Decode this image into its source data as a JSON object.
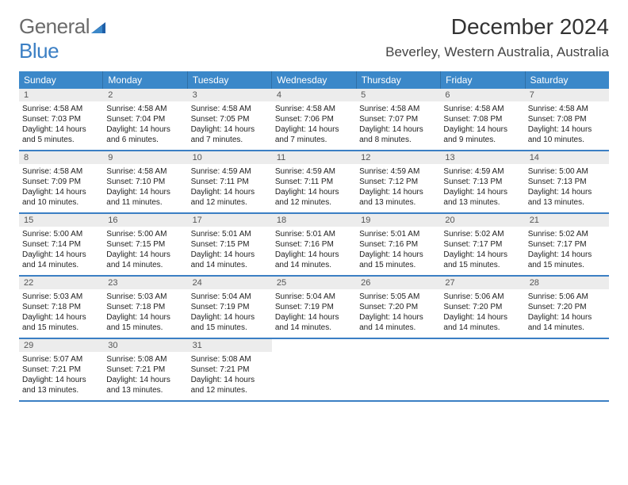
{
  "logo": {
    "text1": "General",
    "text2": "Blue"
  },
  "title": "December 2024",
  "location": "Beverley, Western Australia, Australia",
  "colors": {
    "header_bg": "#3b88c9",
    "header_text": "#ffffff",
    "row_divider": "#3b7fc4",
    "daynum_bg": "#ececec",
    "logo_gray": "#6b6b6b",
    "logo_blue": "#3b7fc4"
  },
  "weekdays": [
    "Sunday",
    "Monday",
    "Tuesday",
    "Wednesday",
    "Thursday",
    "Friday",
    "Saturday"
  ],
  "weeks": [
    [
      {
        "n": "1",
        "sr": "Sunrise: 4:58 AM",
        "ss": "Sunset: 7:03 PM",
        "d1": "Daylight: 14 hours",
        "d2": "and 5 minutes."
      },
      {
        "n": "2",
        "sr": "Sunrise: 4:58 AM",
        "ss": "Sunset: 7:04 PM",
        "d1": "Daylight: 14 hours",
        "d2": "and 6 minutes."
      },
      {
        "n": "3",
        "sr": "Sunrise: 4:58 AM",
        "ss": "Sunset: 7:05 PM",
        "d1": "Daylight: 14 hours",
        "d2": "and 7 minutes."
      },
      {
        "n": "4",
        "sr": "Sunrise: 4:58 AM",
        "ss": "Sunset: 7:06 PM",
        "d1": "Daylight: 14 hours",
        "d2": "and 7 minutes."
      },
      {
        "n": "5",
        "sr": "Sunrise: 4:58 AM",
        "ss": "Sunset: 7:07 PM",
        "d1": "Daylight: 14 hours",
        "d2": "and 8 minutes."
      },
      {
        "n": "6",
        "sr": "Sunrise: 4:58 AM",
        "ss": "Sunset: 7:08 PM",
        "d1": "Daylight: 14 hours",
        "d2": "and 9 minutes."
      },
      {
        "n": "7",
        "sr": "Sunrise: 4:58 AM",
        "ss": "Sunset: 7:08 PM",
        "d1": "Daylight: 14 hours",
        "d2": "and 10 minutes."
      }
    ],
    [
      {
        "n": "8",
        "sr": "Sunrise: 4:58 AM",
        "ss": "Sunset: 7:09 PM",
        "d1": "Daylight: 14 hours",
        "d2": "and 10 minutes."
      },
      {
        "n": "9",
        "sr": "Sunrise: 4:58 AM",
        "ss": "Sunset: 7:10 PM",
        "d1": "Daylight: 14 hours",
        "d2": "and 11 minutes."
      },
      {
        "n": "10",
        "sr": "Sunrise: 4:59 AM",
        "ss": "Sunset: 7:11 PM",
        "d1": "Daylight: 14 hours",
        "d2": "and 12 minutes."
      },
      {
        "n": "11",
        "sr": "Sunrise: 4:59 AM",
        "ss": "Sunset: 7:11 PM",
        "d1": "Daylight: 14 hours",
        "d2": "and 12 minutes."
      },
      {
        "n": "12",
        "sr": "Sunrise: 4:59 AM",
        "ss": "Sunset: 7:12 PM",
        "d1": "Daylight: 14 hours",
        "d2": "and 13 minutes."
      },
      {
        "n": "13",
        "sr": "Sunrise: 4:59 AM",
        "ss": "Sunset: 7:13 PM",
        "d1": "Daylight: 14 hours",
        "d2": "and 13 minutes."
      },
      {
        "n": "14",
        "sr": "Sunrise: 5:00 AM",
        "ss": "Sunset: 7:13 PM",
        "d1": "Daylight: 14 hours",
        "d2": "and 13 minutes."
      }
    ],
    [
      {
        "n": "15",
        "sr": "Sunrise: 5:00 AM",
        "ss": "Sunset: 7:14 PM",
        "d1": "Daylight: 14 hours",
        "d2": "and 14 minutes."
      },
      {
        "n": "16",
        "sr": "Sunrise: 5:00 AM",
        "ss": "Sunset: 7:15 PM",
        "d1": "Daylight: 14 hours",
        "d2": "and 14 minutes."
      },
      {
        "n": "17",
        "sr": "Sunrise: 5:01 AM",
        "ss": "Sunset: 7:15 PM",
        "d1": "Daylight: 14 hours",
        "d2": "and 14 minutes."
      },
      {
        "n": "18",
        "sr": "Sunrise: 5:01 AM",
        "ss": "Sunset: 7:16 PM",
        "d1": "Daylight: 14 hours",
        "d2": "and 14 minutes."
      },
      {
        "n": "19",
        "sr": "Sunrise: 5:01 AM",
        "ss": "Sunset: 7:16 PM",
        "d1": "Daylight: 14 hours",
        "d2": "and 15 minutes."
      },
      {
        "n": "20",
        "sr": "Sunrise: 5:02 AM",
        "ss": "Sunset: 7:17 PM",
        "d1": "Daylight: 14 hours",
        "d2": "and 15 minutes."
      },
      {
        "n": "21",
        "sr": "Sunrise: 5:02 AM",
        "ss": "Sunset: 7:17 PM",
        "d1": "Daylight: 14 hours",
        "d2": "and 15 minutes."
      }
    ],
    [
      {
        "n": "22",
        "sr": "Sunrise: 5:03 AM",
        "ss": "Sunset: 7:18 PM",
        "d1": "Daylight: 14 hours",
        "d2": "and 15 minutes."
      },
      {
        "n": "23",
        "sr": "Sunrise: 5:03 AM",
        "ss": "Sunset: 7:18 PM",
        "d1": "Daylight: 14 hours",
        "d2": "and 15 minutes."
      },
      {
        "n": "24",
        "sr": "Sunrise: 5:04 AM",
        "ss": "Sunset: 7:19 PM",
        "d1": "Daylight: 14 hours",
        "d2": "and 15 minutes."
      },
      {
        "n": "25",
        "sr": "Sunrise: 5:04 AM",
        "ss": "Sunset: 7:19 PM",
        "d1": "Daylight: 14 hours",
        "d2": "and 14 minutes."
      },
      {
        "n": "26",
        "sr": "Sunrise: 5:05 AM",
        "ss": "Sunset: 7:20 PM",
        "d1": "Daylight: 14 hours",
        "d2": "and 14 minutes."
      },
      {
        "n": "27",
        "sr": "Sunrise: 5:06 AM",
        "ss": "Sunset: 7:20 PM",
        "d1": "Daylight: 14 hours",
        "d2": "and 14 minutes."
      },
      {
        "n": "28",
        "sr": "Sunrise: 5:06 AM",
        "ss": "Sunset: 7:20 PM",
        "d1": "Daylight: 14 hours",
        "d2": "and 14 minutes."
      }
    ],
    [
      {
        "n": "29",
        "sr": "Sunrise: 5:07 AM",
        "ss": "Sunset: 7:21 PM",
        "d1": "Daylight: 14 hours",
        "d2": "and 13 minutes."
      },
      {
        "n": "30",
        "sr": "Sunrise: 5:08 AM",
        "ss": "Sunset: 7:21 PM",
        "d1": "Daylight: 14 hours",
        "d2": "and 13 minutes."
      },
      {
        "n": "31",
        "sr": "Sunrise: 5:08 AM",
        "ss": "Sunset: 7:21 PM",
        "d1": "Daylight: 14 hours",
        "d2": "and 12 minutes."
      },
      null,
      null,
      null,
      null
    ]
  ]
}
